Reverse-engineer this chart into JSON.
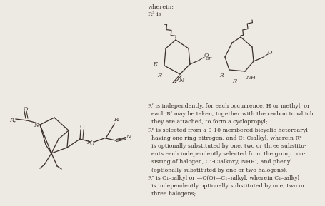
{
  "background_color": "#ede9e3",
  "fig_width": 4.56,
  "fig_height": 2.89,
  "dpi": 100,
  "line_color": "#3a3028",
  "header_lines": [
    "wherein:",
    "R³ is"
  ],
  "text_lines": [
    "Rʹ is independently, for each occurrence, H or methyl; or",
    "  each Rʹ may be taken, together with the carbon to which",
    "  they are attached, to form a cyclopropyl;",
    "Rᵖ is selected from a 9-10 membered bicyclic heteroaryl",
    "  having one ring nitrogen, and C₁-C₆alkyl; wherein Rᵖ",
    "  is optionally substituted by one, two or three substitu-",
    "  ents each independently selected from the group con-",
    "  sisting of halogen, C₁-C₃alkoxy, NHR″, and phenyl",
    "  (optionally substituted by one or two halogens);",
    "R″ is C₁₋₃alkyl or —C(O)—C₁₋₃alkyl, wherein C₁₋₃alkyl",
    "  is independently optionally substituted by one, two or",
    "  three halogens;"
  ]
}
